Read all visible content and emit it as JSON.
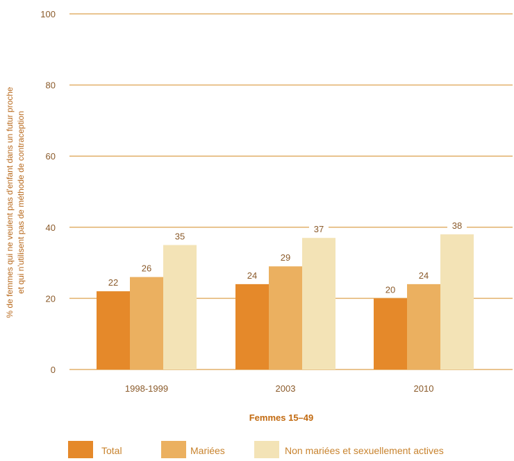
{
  "chart_data": {
    "type": "bar",
    "categories": [
      "1998-1999",
      "2003",
      "2010"
    ],
    "series": [
      {
        "name": "Total",
        "values": [
          22,
          24,
          20
        ],
        "color": "#e5892a"
      },
      {
        "name": "Mariées",
        "values": [
          26,
          29,
          24
        ],
        "color": "#ebb060"
      },
      {
        "name": "Non mariées et sexuellement actives",
        "values": [
          35,
          37,
          38
        ],
        "color": "#f3e3b6"
      }
    ],
    "ylabel": [
      "% de femmes qui ne veulent pas d'enfant dans un futur proche",
      "et qui n'utilisent pas de méthode de contraception"
    ],
    "xlabel": "Femmes 15–49",
    "ylim": [
      0,
      100
    ],
    "yticks": [
      0,
      20,
      40,
      60,
      80,
      100
    ],
    "grid": true,
    "legend_position": "bottom",
    "colors": {
      "grid": "#e2b06a",
      "tick_text": "#8a5a2a",
      "axis_title": "#b86a1e"
    }
  }
}
